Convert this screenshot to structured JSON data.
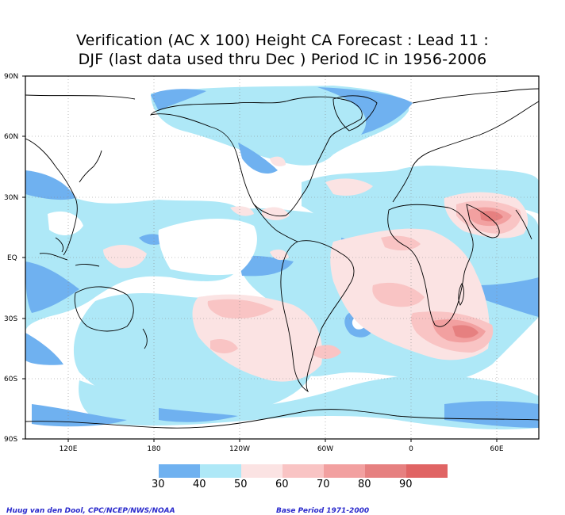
{
  "title": {
    "line1": "Verification (AC X 100) Height CA Forecast : Lead 11 :",
    "line2": "DJF (last data used thru Dec ) Period IC in 1956-2006"
  },
  "map": {
    "projection": "cylindrical equidistant",
    "lat_labels": [
      "90N",
      "60N",
      "30N",
      "EQ",
      "30S",
      "60S",
      "90S"
    ],
    "lon_labels": [
      "120E",
      "180",
      "120W",
      "60W",
      "0",
      "60E"
    ],
    "gridlines": "dotted"
  },
  "colorbar": {
    "labels": [
      "30",
      "40",
      "50",
      "60",
      "70",
      "80",
      "90"
    ],
    "colors": [
      "#6fb1f0",
      "#aee8f7",
      "#fbe3e3",
      "#f9c4c4",
      "#f2a0a0",
      "#e68080",
      "#e06464"
    ]
  },
  "credits": {
    "left": "Huug van den Dool, CPC/NCEP/NWS/NOAA",
    "right": "Base Period 1971-2000"
  }
}
